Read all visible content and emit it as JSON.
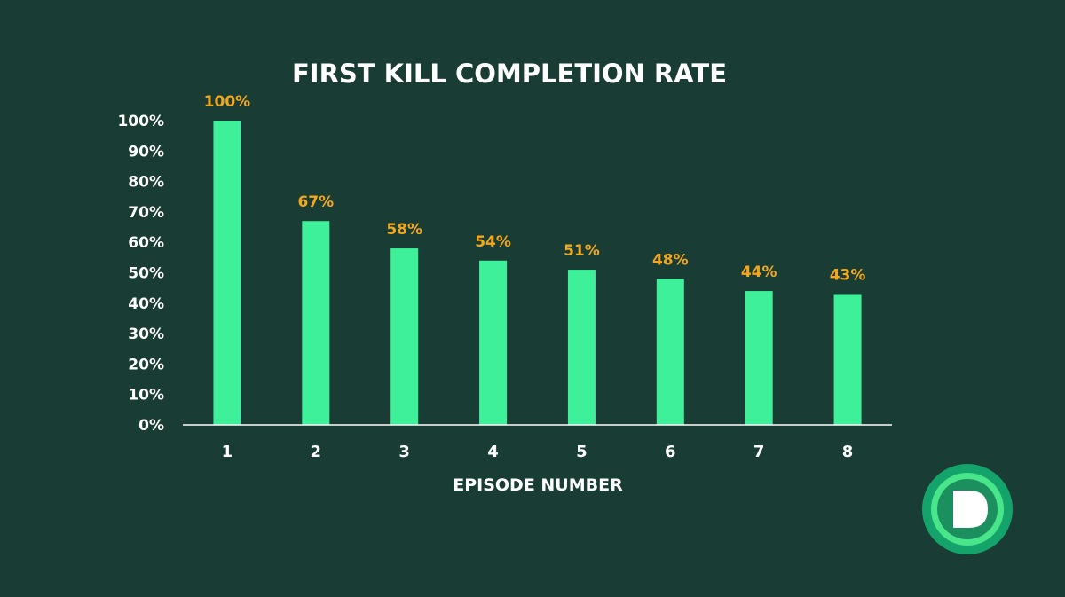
{
  "chart_data": {
    "type": "bar",
    "title": "FIRST KILL COMPLETION RATE",
    "xlabel": "EPISODE NUMBER",
    "ylabel": "",
    "categories": [
      "1",
      "2",
      "3",
      "4",
      "5",
      "6",
      "7",
      "8"
    ],
    "values": [
      100,
      67,
      58,
      54,
      51,
      48,
      44,
      43
    ],
    "data_labels": [
      "100%",
      "67%",
      "58%",
      "54%",
      "51%",
      "48%",
      "44%",
      "43%"
    ],
    "ylim": [
      0,
      100
    ],
    "yticks": [
      "0%",
      "10%",
      "20%",
      "30%",
      "40%",
      "50%",
      "60%",
      "70%",
      "80%",
      "90%",
      "100%"
    ],
    "grid": false,
    "legend": "none",
    "colors": {
      "background": "#193d34",
      "bar": "#3ef09a",
      "data_label": "#f4a71d",
      "text": "#ffffff",
      "axis": "#ffffff"
    }
  },
  "logo": {
    "icon": "d-logo-icon",
    "colors": [
      "#14a36a",
      "#49e58a",
      "#1c8f5f",
      "#ffffff"
    ]
  }
}
